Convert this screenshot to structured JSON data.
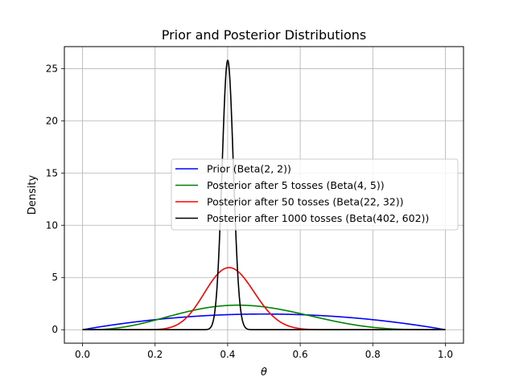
{
  "chart_data": {
    "type": "line",
    "title": "Prior and Posterior Distributions",
    "xlabel": "θ",
    "ylabel": "Density",
    "xlim": [
      -0.05,
      1.05
    ],
    "ylim": [
      -1.29,
      27.1
    ],
    "xticks": [
      0.0,
      0.2,
      0.4,
      0.6,
      0.8,
      1.0
    ],
    "xtick_labels": [
      "0.0",
      "0.2",
      "0.4",
      "0.6",
      "0.8",
      "1.0"
    ],
    "yticks": [
      0,
      5,
      10,
      15,
      20,
      25
    ],
    "ytick_labels": [
      "0",
      "5",
      "10",
      "15",
      "20",
      "25"
    ],
    "grid": true,
    "legend_position": "center-right",
    "series": [
      {
        "name": "Prior (Beta(2, 2))",
        "color": "#0000ff",
        "alpha": 2,
        "beta": 2,
        "x": [
          0.0,
          0.1,
          0.2,
          0.3,
          0.4,
          0.5,
          0.6,
          0.7,
          0.8,
          0.9,
          1.0
        ],
        "y": [
          0.0,
          0.54,
          0.96,
          1.26,
          1.44,
          1.5,
          1.44,
          1.26,
          0.96,
          0.54,
          0.0
        ]
      },
      {
        "name": "Posterior after 5 tosses (Beta(4, 5))",
        "color": "#008000",
        "alpha": 4,
        "beta": 5,
        "x": [
          0.0,
          0.1,
          0.2,
          0.3,
          0.4,
          0.5,
          0.6,
          0.7,
          0.8,
          0.9,
          1.0
        ],
        "y": [
          0.0,
          0.18,
          0.92,
          1.85,
          2.32,
          2.19,
          1.55,
          0.77,
          0.23,
          0.02,
          0.0
        ]
      },
      {
        "name": "Posterior after 50 tosses (Beta(22, 32))",
        "color": "#ff0000",
        "alpha": 22,
        "beta": 32,
        "x": [
          0.0,
          0.2,
          0.25,
          0.3,
          0.35,
          0.4,
          0.45,
          0.5,
          0.55,
          0.6,
          0.7,
          1.0
        ],
        "y": [
          0.0,
          0.03,
          0.33,
          1.7,
          4.2,
          5.95,
          4.9,
          2.35,
          0.62,
          0.1,
          0.0,
          0.0
        ]
      },
      {
        "name": "Posterior after 1000 tosses (Beta(402, 602))",
        "color": "#000000",
        "alpha": 402,
        "beta": 602,
        "x": [
          0.0,
          0.35,
          0.37,
          0.38,
          0.39,
          0.4,
          0.41,
          0.42,
          0.43,
          0.45,
          1.0
        ],
        "y": [
          0.0,
          0.2,
          4.1,
          10.8,
          20.8,
          25.8,
          19.8,
          9.5,
          3.5,
          0.12,
          0.0
        ]
      }
    ]
  }
}
